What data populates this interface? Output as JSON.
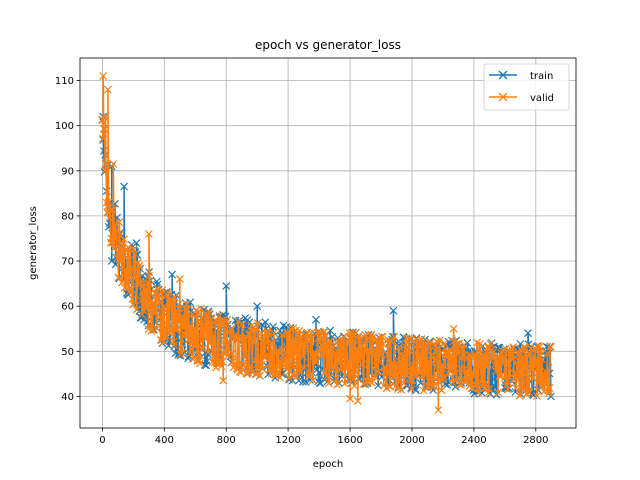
{
  "chart_data": {
    "type": "line",
    "title": "epoch vs generator_loss",
    "xlabel": "epoch",
    "ylabel": "generator_loss",
    "xlim": [
      -145,
      3060
    ],
    "ylim": [
      33,
      115
    ],
    "xticks": [
      0,
      400,
      800,
      1200,
      1600,
      2000,
      2400,
      2800
    ],
    "yticks": [
      40,
      50,
      60,
      70,
      80,
      90,
      100,
      110
    ],
    "grid": true,
    "legend_position": "top-right",
    "marker": "x",
    "series": [
      {
        "name": "train",
        "color": "#1f77b4",
        "x": [
          0,
          10,
          20,
          30,
          40,
          60,
          80,
          100,
          130,
          160,
          200,
          250,
          300,
          350,
          400,
          450,
          500,
          600,
          700,
          800,
          900,
          1000,
          1100,
          1200,
          1300,
          1400,
          1500,
          1600,
          1700,
          1800,
          1900,
          2000,
          2100,
          2200,
          2300,
          2400,
          2500,
          2600,
          2700,
          2800,
          2900
        ],
        "y": [
          102,
          95,
          90,
          86,
          82,
          78,
          75,
          72,
          70,
          68,
          66,
          63,
          61,
          59,
          58,
          56.5,
          55.5,
          54,
          53,
          52,
          51.5,
          51,
          50.5,
          50,
          49.5,
          49.3,
          49,
          48.8,
          48.5,
          48.3,
          48,
          47.8,
          47.6,
          47.4,
          47.2,
          47,
          46.8,
          46.7,
          46.6,
          46.5,
          46.4
        ],
        "spread_hi": [
          14,
          12,
          11,
          10,
          9,
          9,
          8.5,
          8,
          8,
          7.5,
          7.5,
          7,
          7,
          7,
          6.5,
          6.5,
          6.5,
          6.5,
          6,
          6,
          6,
          6,
          5.8,
          5.8,
          5.6,
          5.6,
          5.5,
          5.5,
          5.4,
          5.4,
          5.3,
          5.3,
          5.2,
          5.2,
          5.2,
          5.1,
          5.1,
          5.1,
          5.1,
          5,
          5
        ],
        "spread_lo": [
          6,
          6,
          6,
          6,
          6,
          6,
          6,
          6,
          6,
          6,
          6,
          6,
          6.5,
          6.5,
          6.5,
          6.5,
          6.5,
          6.5,
          6.5,
          6.5,
          6.5,
          6.5,
          6.5,
          6.5,
          6.5,
          6.5,
          6.5,
          6.5,
          6.5,
          6.5,
          6.5,
          6.5,
          6.5,
          6.5,
          6.5,
          6.5,
          6.5,
          6.5,
          6.5,
          6.5,
          6.5
        ],
        "spikes": [
          [
            5,
            102
          ],
          [
            60,
            91
          ],
          [
            140,
            86.5
          ],
          [
            220,
            74
          ],
          [
            450,
            67
          ],
          [
            800,
            64.5
          ],
          [
            1000,
            60
          ],
          [
            1380,
            57
          ],
          [
            1880,
            59
          ],
          [
            2750,
            54
          ],
          [
            60,
            70
          ],
          [
            1920,
            42
          ]
        ]
      },
      {
        "name": "valid",
        "color": "#ff7f0e",
        "x": [
          0,
          10,
          20,
          30,
          40,
          60,
          80,
          100,
          130,
          160,
          200,
          250,
          300,
          350,
          400,
          450,
          500,
          600,
          700,
          800,
          900,
          1000,
          1100,
          1200,
          1300,
          1400,
          1500,
          1600,
          1700,
          1800,
          1900,
          2000,
          2100,
          2200,
          2300,
          2400,
          2500,
          2600,
          2700,
          2800,
          2900
        ],
        "y": [
          104,
          95,
          90,
          86,
          82,
          78,
          75,
          72,
          70,
          68,
          66,
          63,
          61,
          59,
          58,
          56.5,
          55.5,
          54,
          53,
          52,
          51.5,
          51,
          50.5,
          50,
          49.5,
          49.3,
          49,
          48.8,
          48.5,
          48.3,
          48,
          47.8,
          47.6,
          47.4,
          47.2,
          47,
          46.8,
          46.7,
          46.6,
          46.5,
          46.4
        ],
        "spread_hi": [
          7,
          10,
          10,
          9,
          8.5,
          8,
          8,
          8,
          7.5,
          7.5,
          7,
          7,
          6.5,
          6.5,
          6.5,
          6.5,
          6,
          6,
          6,
          6,
          5.8,
          5.8,
          5.6,
          5.6,
          5.5,
          5.5,
          5.4,
          5.4,
          5.3,
          5.3,
          5.2,
          5.2,
          5.1,
          5.1,
          5.1,
          5,
          5,
          5,
          5,
          5,
          5
        ],
        "spread_lo": [
          6,
          6,
          6,
          6,
          6,
          6,
          6,
          6,
          6,
          6,
          6,
          6,
          6.5,
          6.5,
          6.5,
          6.5,
          6.5,
          6.5,
          6.5,
          6.5,
          6.5,
          6.5,
          6.5,
          6.5,
          6.5,
          6.5,
          6.5,
          6.5,
          6.5,
          6.5,
          6.5,
          6.5,
          6.5,
          6.5,
          6.5,
          6.5,
          6.5,
          6.5,
          6.5,
          6.5,
          6.5
        ],
        "spikes": [
          [
            5,
            111
          ],
          [
            35,
            108
          ],
          [
            20,
            102
          ],
          [
            300,
            76
          ],
          [
            70,
            91.5
          ],
          [
            500,
            66
          ],
          [
            2270,
            55
          ],
          [
            2170,
            37
          ],
          [
            1600,
            39.5
          ],
          [
            1650,
            39
          ],
          [
            780,
            43.5
          ]
        ]
      }
    ]
  }
}
